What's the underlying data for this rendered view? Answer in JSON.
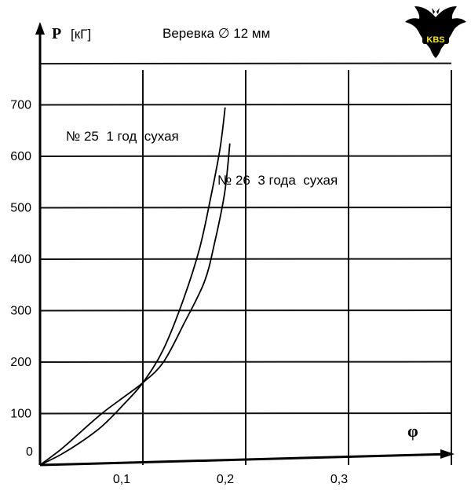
{
  "chart_data": {
    "type": "line",
    "title": "Веревка  ∅ 12 мм",
    "ylabel": "P",
    "yunit": "[кГ]",
    "xlabel": "φ",
    "origin_label": "0",
    "xlim": [
      0,
      0.42
    ],
    "ylim": [
      0,
      780
    ],
    "x_ticks": [
      0.1,
      0.2,
      0.3
    ],
    "x_tick_labels": [
      "0,1",
      "0,2",
      "0,3"
    ],
    "y_ticks": [
      100,
      200,
      300,
      400,
      500,
      600,
      700
    ],
    "y_tick_labels": [
      "100",
      "200",
      "300",
      "400",
      "500",
      "600",
      "700"
    ],
    "grid": true,
    "series": [
      {
        "name": "№ 25  1 год  сухая",
        "x": [
          0,
          0.02,
          0.04,
          0.06,
          0.08,
          0.1,
          0.12,
          0.14,
          0.155,
          0.165,
          0.175,
          0.18
        ],
        "y": [
          0,
          20,
          45,
          75,
          115,
          160,
          225,
          325,
          420,
          510,
          615,
          695
        ]
      },
      {
        "name": "№ 26  3 года  сухая",
        "x": [
          0,
          0.02,
          0.04,
          0.06,
          0.08,
          0.1,
          0.12,
          0.14,
          0.155,
          0.165,
          0.175,
          0.18
        ],
        "y": [
          0,
          30,
          65,
          100,
          130,
          160,
          200,
          275,
          355,
          430,
          530,
          625
        ]
      }
    ]
  },
  "logo": {
    "text": "KBS",
    "icon": "bat-logo-icon",
    "color": "#f5e600"
  }
}
